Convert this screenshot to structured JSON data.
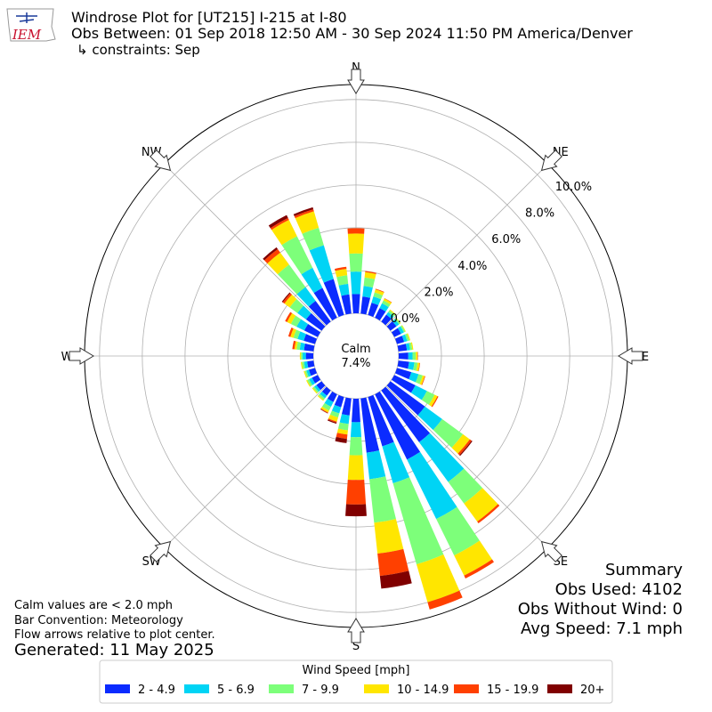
{
  "chart_data": {
    "type": "windrose",
    "title": "Windrose Plot for [UT215] I-215 at I-80",
    "subtitle": "Obs Between: 01 Sep 2018 12:50 AM - 30 Sep 2024 11:50 PM America/Denver",
    "constraints": "↳ constraints: Sep",
    "logo": "IEM",
    "x": [
      0,
      10,
      20,
      30,
      40,
      50,
      60,
      70,
      80,
      90,
      100,
      110,
      120,
      130,
      140,
      150,
      160,
      170,
      180,
      190,
      200,
      210,
      220,
      230,
      240,
      250,
      260,
      270,
      280,
      290,
      300,
      310,
      320,
      330,
      340,
      350
    ],
    "xlim": [
      0,
      360
    ],
    "xticks": [
      {
        "value": 0,
        "label": "N"
      },
      {
        "value": 45,
        "label": "NE"
      },
      {
        "value": 90,
        "label": "E"
      },
      {
        "value": 135,
        "label": "SE"
      },
      {
        "value": 180,
        "label": "S"
      },
      {
        "value": 225,
        "label": "SW"
      },
      {
        "value": 270,
        "label": "W"
      },
      {
        "value": 315,
        "label": "NW"
      }
    ],
    "ylim": [
      0,
      10.7
    ],
    "yticks": [
      {
        "value": 0,
        "label": "0.0%"
      },
      {
        "value": 2,
        "label": "2.0%"
      },
      {
        "value": 4,
        "label": "4.0%"
      },
      {
        "value": 6,
        "label": "6.0%"
      },
      {
        "value": 8,
        "label": "8.0%"
      },
      {
        "value": 10,
        "label": "10.0%"
      }
    ],
    "grid": true,
    "calm": {
      "label": "Calm",
      "value": 7.4,
      "value_label": "7.4%"
    },
    "legend_title": "Wind Speed [mph]",
    "legend_position": "bottom",
    "series": [
      {
        "name": "2 - 4.9",
        "color": "#0b2bff",
        "values": [
          0.9,
          0.8,
          0.6,
          0.5,
          0.4,
          0.35,
          0.35,
          0.35,
          0.4,
          0.45,
          0.5,
          0.7,
          1.1,
          2.0,
          3.0,
          3.4,
          2.4,
          2.55,
          1.1,
          0.8,
          0.5,
          0.4,
          0.3,
          0.3,
          0.3,
          0.3,
          0.3,
          0.35,
          0.45,
          0.55,
          0.7,
          0.9,
          1.2,
          1.55,
          1.75,
          0.9
        ]
      },
      {
        "name": "5 - 6.9",
        "color": "#00d4f5",
        "values": [
          1.05,
          0.5,
          0.3,
          0.25,
          0.15,
          0.15,
          0.15,
          0.15,
          0.15,
          0.2,
          0.25,
          0.35,
          0.6,
          1.0,
          2.3,
          3.1,
          1.8,
          1.25,
          0.7,
          0.4,
          0.3,
          0.25,
          0.15,
          0.12,
          0.15,
          0.12,
          0.15,
          0.15,
          0.2,
          0.3,
          0.4,
          0.5,
          0.8,
          1.05,
          1.65,
          0.5
        ]
      },
      {
        "name": "7 - 9.9",
        "color": "#7dff7a",
        "values": [
          0.85,
          0.4,
          0.2,
          0.15,
          0.1,
          0.07,
          0.07,
          0.1,
          0.1,
          0.15,
          0.15,
          0.2,
          0.4,
          1.2,
          1.25,
          1.9,
          3.95,
          2.05,
          0.85,
          0.3,
          0.2,
          0.2,
          0.1,
          0.08,
          0.1,
          0.08,
          0.1,
          0.08,
          0.15,
          0.2,
          0.3,
          0.45,
          1.3,
          1.65,
          0.85,
          0.4
        ]
      },
      {
        "name": "10 - 14.9",
        "color": "#ffe600",
        "values": [
          0.93,
          0.25,
          0.15,
          0.1,
          0.05,
          0.03,
          0.03,
          0.05,
          0.05,
          0.08,
          0.1,
          0.1,
          0.15,
          0.4,
          1.05,
          1.05,
          1.85,
          1.45,
          1.15,
          0.2,
          0.2,
          0.1,
          0.05,
          0.05,
          0.05,
          0.05,
          0.05,
          0.05,
          0.1,
          0.15,
          0.2,
          0.3,
          0.7,
          0.85,
          0.8,
          0.3
        ]
      },
      {
        "name": "15 - 19.9",
        "color": "#ff4000",
        "values": [
          0.25,
          0.05,
          0.03,
          0.02,
          0,
          0,
          0,
          0,
          0,
          0.02,
          0.02,
          0.03,
          0.05,
          0.1,
          0.1,
          0.15,
          0.35,
          1.05,
          1.15,
          0.2,
          0.05,
          0.03,
          0,
          0,
          0,
          0,
          0,
          0,
          0.1,
          0.1,
          0.1,
          0.1,
          0.2,
          0.1,
          0.1,
          0.1
        ]
      },
      {
        "name": "20+",
        "color": "#800000",
        "values": [
          0,
          0,
          0,
          0,
          0,
          0,
          0,
          0,
          0,
          0,
          0,
          0,
          0,
          0.05,
          0,
          0,
          0,
          0.6,
          0.55,
          0.2,
          0.05,
          0.02,
          0,
          0,
          0,
          0,
          0,
          0,
          0,
          0,
          0,
          0.05,
          0.1,
          0.15,
          0.1,
          0
        ]
      }
    ],
    "notes": [
      "Calm values are < 2.0 mph",
      "Bar Convention: Meteorology",
      "Flow arrows relative to plot center."
    ],
    "generated": "Generated: 11 May 2025",
    "summary": [
      "Summary",
      "Obs Used: 4102",
      "Obs Without Wind: 0",
      "Avg Speed: 7.1 mph"
    ]
  }
}
